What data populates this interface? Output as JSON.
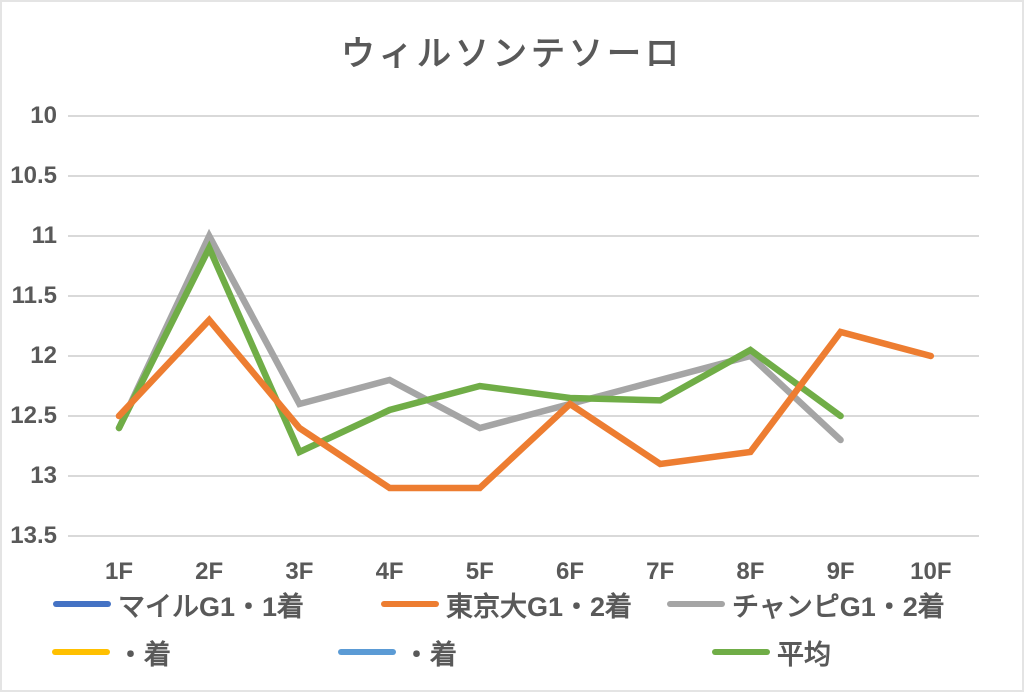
{
  "chart_data": {
    "type": "line",
    "title": "ウィルソンテソーロ",
    "categories": [
      "1F",
      "2F",
      "3F",
      "4F",
      "5F",
      "6F",
      "7F",
      "8F",
      "9F",
      "10F"
    ],
    "xlabel": "",
    "ylabel": "",
    "y_axis": {
      "ticks": [
        "10",
        "10.5",
        "11",
        "11.5",
        "12",
        "12.5",
        "13",
        "13.5"
      ],
      "tick_values": [
        10,
        10.5,
        11,
        11.5,
        12,
        12.5,
        13,
        13.5
      ],
      "range": [
        10,
        13.5
      ],
      "inverted": true
    },
    "grid": true,
    "legend_position": "bottom",
    "series": [
      {
        "name": "マイルG1・1着",
        "color": "#4472C4",
        "values": []
      },
      {
        "name": "東京大G1・2着",
        "color": "#ED7D31",
        "values": [
          12.5,
          11.7,
          12.6,
          13.1,
          13.1,
          12.4,
          12.9,
          12.8,
          11.8,
          12.0
        ]
      },
      {
        "name": "チャンピG1・2着",
        "color": "#A5A5A5",
        "values": [
          12.6,
          11.0,
          12.4,
          12.2,
          12.6,
          12.4,
          12.2,
          12.0,
          12.7
        ]
      },
      {
        "name": "・着",
        "color": "#FFC000",
        "values": []
      },
      {
        "name": "・着",
        "color": "#5B9BD5",
        "values": []
      },
      {
        "name": "平均",
        "color": "#70AD47",
        "values": [
          12.6,
          11.1,
          12.8,
          12.45,
          12.25,
          12.35,
          12.37,
          11.95,
          12.5
        ]
      }
    ],
    "draw_order": [
      2,
      5,
      1
    ]
  },
  "colors": {
    "gridline": "#D9D9D9",
    "text": "#595959",
    "frame_border": "#E4E4E4"
  }
}
